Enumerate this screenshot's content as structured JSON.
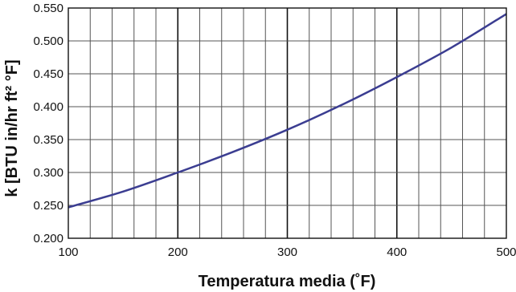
{
  "chart_data": {
    "type": "line",
    "title": "",
    "xlabel": "Temperatura media (˚F)",
    "ylabel": "k [BTU in/hr ft² °F]",
    "xlim": [
      100,
      500
    ],
    "ylim": [
      0.2,
      0.55
    ],
    "xticks": [
      100,
      200,
      300,
      400,
      500
    ],
    "xtick_labels": [
      "100",
      "200",
      "300",
      "400",
      "500"
    ],
    "yticks": [
      0.2,
      0.25,
      0.3,
      0.35,
      0.4,
      0.45,
      0.5,
      0.55
    ],
    "ytick_labels": [
      "0.200",
      "0.250",
      "0.300",
      "0.350",
      "0.400",
      "0.450",
      "0.500",
      "0.550"
    ],
    "grid": true,
    "minor_x_step": 20,
    "major_x_step": 100,
    "series": [
      {
        "color": "#3b3d91",
        "x": [
          100,
          150,
          200,
          250,
          300,
          350,
          400,
          450,
          500
        ],
        "y": [
          0.247,
          0.271,
          0.3,
          0.331,
          0.365,
          0.403,
          0.445,
          0.49,
          0.541
        ]
      }
    ]
  }
}
